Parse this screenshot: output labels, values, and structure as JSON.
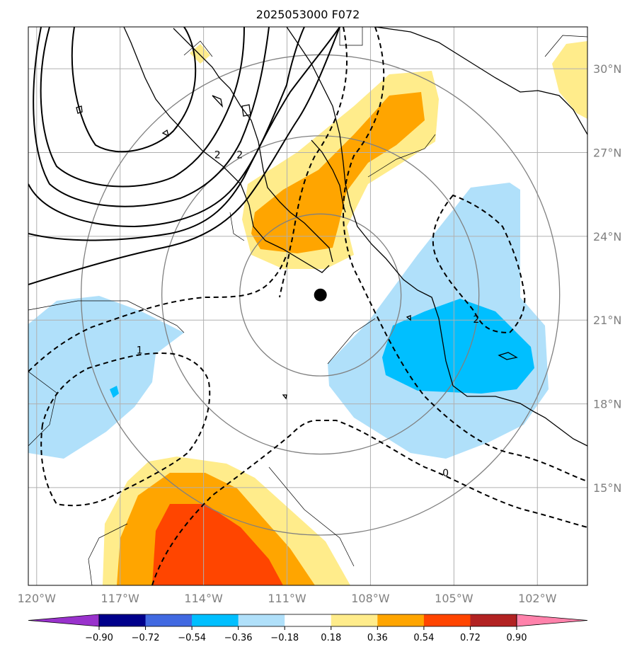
{
  "title": "2025053000 F072",
  "chart_data": {
    "type": "map",
    "title": "2025053000 F072",
    "lon_range": [
      -120.3,
      -100.2
    ],
    "lat_range": [
      11.5,
      31.5
    ],
    "lat_ticks": [
      {
        "value": 30,
        "label": "30°N"
      },
      {
        "value": 27,
        "label": "27°N"
      },
      {
        "value": 24,
        "label": "24°N"
      },
      {
        "value": 21,
        "label": "21°N"
      },
      {
        "value": 18,
        "label": "18°N"
      },
      {
        "value": 15,
        "label": "15°N"
      }
    ],
    "lon_ticks": [
      {
        "value": -120,
        "label": "120°W"
      },
      {
        "value": -117,
        "label": "117°W"
      },
      {
        "value": -114,
        "label": "114°W"
      },
      {
        "value": -111,
        "label": "111°W"
      },
      {
        "value": -108,
        "label": "108°W"
      },
      {
        "value": -105,
        "label": "105°W"
      },
      {
        "value": -102,
        "label": "102°W"
      }
    ],
    "grid": true,
    "center_marker": {
      "lon": -109.8,
      "lat": 21.9
    },
    "range_rings_deg": [
      2.9,
      5.7,
      8.6
    ],
    "colorbar": {
      "levels": [
        "−0.90",
        "−0.72",
        "−0.54",
        "−0.36",
        "−0.18",
        "0.18",
        "0.36",
        "0.54",
        "0.72",
        "0.90"
      ],
      "colors": [
        "#9932cc",
        "#00008b",
        "#4169e1",
        "#00bfff",
        "#b0e0fa",
        "#ffffff",
        "#ffec8b",
        "#ffa500",
        "#ff4500",
        "#b22222",
        "#ff82ab"
      ],
      "extend": "both"
    },
    "contour_labels": [
      {
        "text": "2",
        "lon": -113.5,
        "lat": 26.9
      },
      {
        "text": "2",
        "lon": -112.7,
        "lat": 26.9
      },
      {
        "text": "1",
        "lon": -116.3,
        "lat": 19.9
      },
      {
        "text": "2",
        "lon": -104.2,
        "lat": 21.0
      },
      {
        "text": "0",
        "lon": -105.3,
        "lat": 15.5
      }
    ]
  }
}
